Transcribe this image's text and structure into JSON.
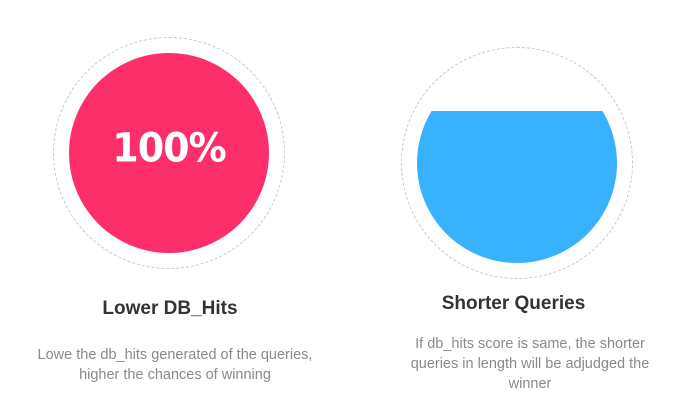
{
  "cards": [
    {
      "title": "Lower DB_Hits",
      "description": "Lowe the db_hits generated of the queries, higher the chances of winning",
      "percent_label": "100%",
      "fill_fraction": 1.0,
      "color": "#fd2f6b"
    },
    {
      "title": "Shorter Queries",
      "description": "If db_hits score is same, the shorter queries in length will be adjudged the winner",
      "fill_fraction": 0.76,
      "color": "#38b1fe"
    }
  ],
  "colors": {
    "ring": "#c9c9c9",
    "title_text": "#333333",
    "description_text": "#8a8a8a"
  }
}
